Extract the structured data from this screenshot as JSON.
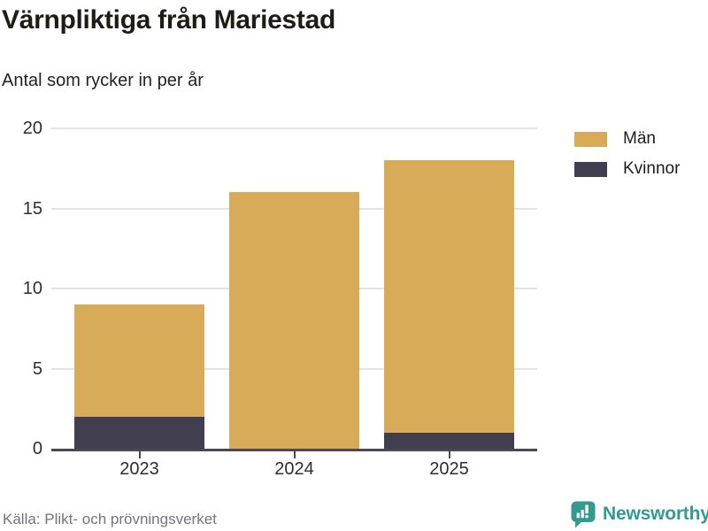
{
  "header": {
    "title": "Värnpliktiga från Mariestad",
    "subtitle": "Antal som rycker in per år"
  },
  "chart_data": {
    "type": "bar",
    "stacked": true,
    "title": "Värnpliktiga från Mariestad",
    "subtitle": "Antal som rycker in per år",
    "categories": [
      "2023",
      "2024",
      "2025"
    ],
    "series": [
      {
        "name": "Män",
        "color": "#d8ab58",
        "values": [
          7,
          16,
          17
        ]
      },
      {
        "name": "Kvinnor",
        "color": "#413f4f",
        "values": [
          2,
          0,
          1
        ]
      }
    ],
    "stack_order_bottom_to_top": [
      "Kvinnor",
      "Män"
    ],
    "totals": [
      9,
      16,
      18
    ],
    "xlabel": "",
    "ylabel": "",
    "ylim": [
      0,
      20
    ],
    "yticks": [
      0,
      5,
      10,
      15,
      20
    ],
    "grid": "horizontal",
    "legend_position": "top-right"
  },
  "colors": {
    "men": "#d8ab58",
    "women": "#413f4f",
    "axis": "#4a4852",
    "gridline": "#e3e3e3",
    "brand_teal": "#339a90",
    "source_text": "#73737b"
  },
  "footer": {
    "source": "Källa: Plikt- och prövningsverket",
    "brand_name": "Newsworthy"
  }
}
